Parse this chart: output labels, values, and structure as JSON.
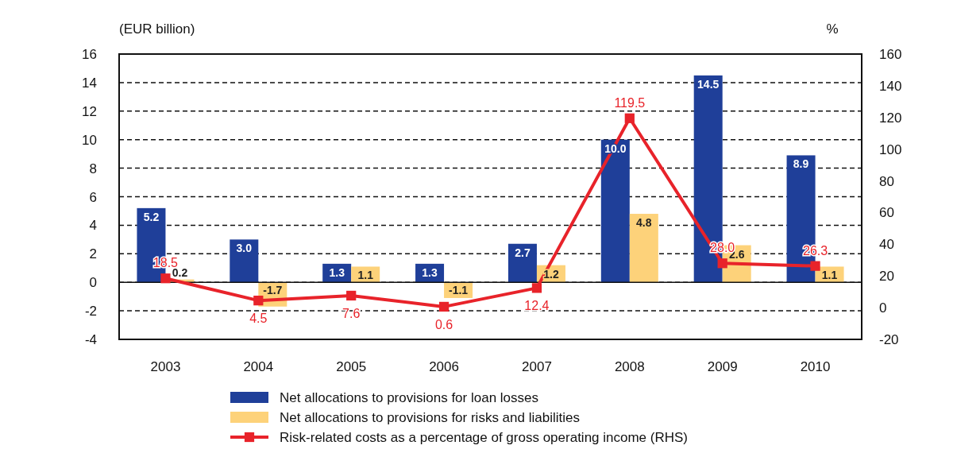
{
  "chart_data": {
    "type": "bar",
    "ylabel": "(EUR billion)",
    "y2label": "%",
    "categories": [
      "2003",
      "2004",
      "2005",
      "2006",
      "2007",
      "2008",
      "2009",
      "2010"
    ],
    "series": [
      {
        "name": "Net allocations to provisions for loan losses",
        "color": "#1f3f99",
        "values": [
          5.2,
          3.0,
          1.3,
          1.3,
          2.7,
          10.0,
          14.5,
          8.9
        ],
        "value_labels": [
          "5.2",
          "3.0",
          "1.3",
          "1.3",
          "2.7",
          "10.0",
          "14.5",
          "8.9"
        ]
      },
      {
        "name": "Net allocations to provisions for risks and liabilities",
        "color": "#fdd27a",
        "values": [
          0.2,
          -1.7,
          1.1,
          -1.1,
          1.2,
          4.8,
          2.6,
          1.1
        ],
        "value_labels": [
          "0.2",
          "-1.7",
          "1.1",
          "-1.1",
          "1.2",
          "4.8",
          "2.6",
          "1.1"
        ]
      },
      {
        "name": "Risk-related costs as a percentage of gross operating income (RHS)",
        "type": "line",
        "axis": "y2",
        "color": "#e8232a",
        "marker": "square",
        "values": [
          18.5,
          4.5,
          7.6,
          0.6,
          12.4,
          119.5,
          28.0,
          26.3
        ],
        "value_labels": [
          "18.5",
          "4.5",
          "7.6",
          "0.6",
          "12.4",
          "119.5",
          "28.0",
          "26.3"
        ]
      }
    ],
    "ylim": [
      -4,
      16
    ],
    "yticks": [
      -4,
      -2,
      0,
      2,
      4,
      6,
      8,
      10,
      12,
      14,
      16
    ],
    "y2lim": [
      -20,
      160
    ],
    "y2ticks": [
      -20,
      0,
      20,
      40,
      60,
      80,
      100,
      120,
      140,
      160
    ],
    "grid": "y",
    "legend": "bottom"
  }
}
